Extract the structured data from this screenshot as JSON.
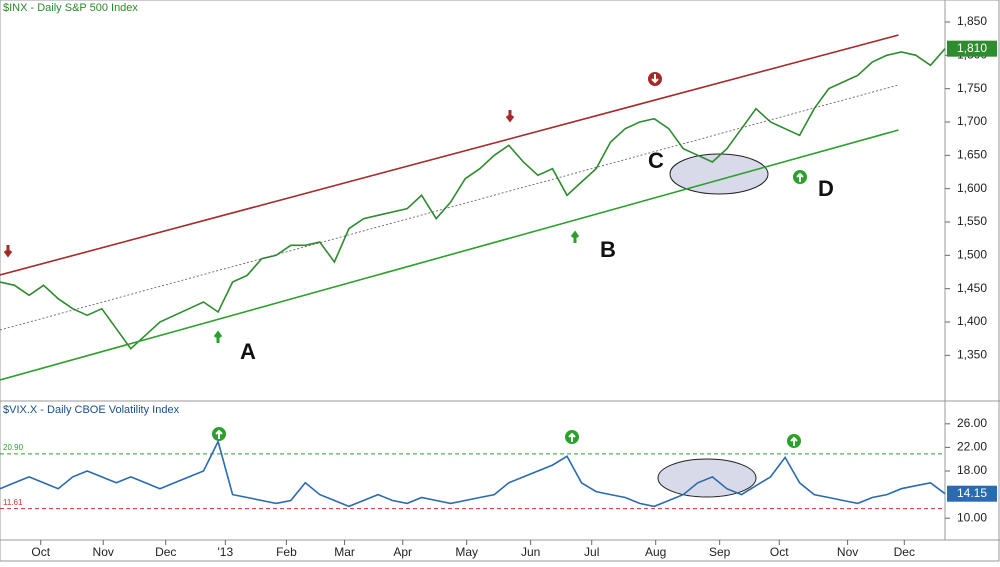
{
  "chart_data": [
    {
      "type": "line",
      "title": "$INX - Daily  S&P 500 Index",
      "x": [
        0,
        1,
        2,
        3,
        4,
        5,
        6,
        7,
        8,
        9,
        10,
        11,
        12,
        13,
        14,
        15,
        16,
        17,
        18,
        19,
        20,
        21,
        22,
        23,
        24,
        25,
        26,
        27,
        28,
        29,
        30,
        31,
        32,
        33,
        34,
        35,
        36,
        37,
        38,
        39,
        40,
        41,
        42,
        43,
        44,
        45,
        46,
        47,
        48,
        49,
        50,
        51,
        52,
        53,
        54,
        55,
        56,
        57,
        58,
        59,
        60,
        61,
        62,
        63,
        64,
        65
      ],
      "xlim": [
        0,
        65
      ],
      "ylim": [
        1283,
        1883
      ],
      "yticks": [
        {
          "value": 1350,
          "label": "1,350"
        },
        {
          "value": 1400,
          "label": "1,400"
        },
        {
          "value": 1450,
          "label": "1,450"
        },
        {
          "value": 1500,
          "label": "1,500"
        },
        {
          "value": 1550,
          "label": "1,550"
        },
        {
          "value": 1600,
          "label": "1,600"
        },
        {
          "value": 1650,
          "label": "1,650"
        },
        {
          "value": 1700,
          "label": "1,700"
        },
        {
          "value": 1750,
          "label": "1,750"
        },
        {
          "value": 1800,
          "label": "1,800"
        },
        {
          "value": 1850,
          "label": "1,850"
        }
      ],
      "series": [
        {
          "color": "#2e8b2e",
          "values": [
            1460,
            1455,
            1440,
            1455,
            1435,
            1420,
            1410,
            1420,
            1390,
            1360,
            1380,
            1400,
            1410,
            1420,
            1430,
            1415,
            1460,
            1470,
            1495,
            1500,
            1515,
            1515,
            1520,
            1490,
            1540,
            1555,
            1560,
            1565,
            1570,
            1590,
            1555,
            1580,
            1615,
            1630,
            1650,
            1665,
            1640,
            1620,
            1630,
            1590,
            1610,
            1630,
            1670,
            1690,
            1700,
            1705,
            1690,
            1660,
            1650,
            1640,
            1660,
            1690,
            1720,
            1700,
            1690,
            1680,
            1720,
            1750,
            1760,
            1770,
            1790,
            1800,
            1805,
            1800,
            1785,
            1810
          ],
          "value_labels": [
            null,
            null,
            null,
            null,
            null,
            null,
            null,
            null,
            null,
            null,
            null,
            null,
            null,
            null,
            null,
            null,
            null,
            null,
            null,
            null,
            null,
            null,
            null,
            null,
            null,
            null,
            null,
            null,
            null,
            null,
            null,
            null,
            null,
            null,
            null,
            null,
            null,
            null,
            null,
            null,
            null,
            null,
            null,
            null,
            null,
            null,
            null,
            null,
            null,
            null,
            null,
            null,
            null,
            null,
            null,
            null,
            null,
            null,
            null,
            null,
            null,
            null,
            null,
            null,
            null,
            "1,810"
          ]
        },
        {
          "color": "#a52a2a",
          "x": [
            0,
            61.8
          ],
          "values": [
            1470.5,
            1830.5
          ]
        },
        {
          "color": "#2ca02c",
          "x": [
            0,
            61.8
          ],
          "values": [
            1313,
            1688
          ]
        },
        {
          "color": "#555555",
          "dash": true,
          "x": [
            0,
            61.8
          ],
          "values": [
            1388,
            1755.5
          ]
        }
      ],
      "annotations": [
        "A",
        "B",
        "C",
        "D"
      ]
    },
    {
      "type": "line",
      "title": "$VIX.X - Daily  CBOE Volatility Index",
      "x": [
        0,
        1,
        2,
        3,
        4,
        5,
        6,
        7,
        8,
        9,
        10,
        11,
        12,
        13,
        14,
        15,
        16,
        17,
        18,
        19,
        20,
        21,
        22,
        23,
        24,
        25,
        26,
        27,
        28,
        29,
        30,
        31,
        32,
        33,
        34,
        35,
        36,
        37,
        38,
        39,
        40,
        41,
        42,
        43,
        44,
        45,
        46,
        47,
        48,
        49,
        50,
        51,
        52,
        53,
        54,
        55,
        56,
        57,
        58,
        59,
        60,
        61,
        62,
        63,
        64,
        65
      ],
      "xlim": [
        0,
        65
      ],
      "xticks": [
        {
          "value": 2.8,
          "label": "Oct"
        },
        {
          "value": 7.1,
          "label": "Nov"
        },
        {
          "value": 11.4,
          "label": "Dec"
        },
        {
          "value": 15.5,
          "label": "'13"
        },
        {
          "value": 19.7,
          "label": "Feb"
        },
        {
          "value": 23.7,
          "label": "Mar"
        },
        {
          "value": 27.7,
          "label": "Apr"
        },
        {
          "value": 32.1,
          "label": "May"
        },
        {
          "value": 36.5,
          "label": "Jun"
        },
        {
          "value": 40.7,
          "label": "Jul"
        },
        {
          "value": 45.1,
          "label": "Aug"
        },
        {
          "value": 49.5,
          "label": "Sep"
        },
        {
          "value": 53.6,
          "label": "Oct"
        },
        {
          "value": 58.3,
          "label": "Nov"
        },
        {
          "value": 62.2,
          "label": "Dec"
        }
      ],
      "ylim": [
        6.3,
        29.7
      ],
      "yticks": [
        {
          "value": 10,
          "label": "10.00"
        },
        {
          "value": 18,
          "label": "18.00"
        },
        {
          "value": 22,
          "label": "22.00"
        },
        {
          "value": 26,
          "label": "26.00"
        }
      ],
      "series": [
        {
          "color": "#2a6ab0",
          "values": [
            15,
            16,
            17,
            16,
            15,
            17,
            18,
            17,
            16,
            17,
            16,
            15,
            16,
            17,
            18,
            23,
            14,
            13.5,
            13,
            12.5,
            13,
            16,
            14,
            13,
            12,
            13,
            14,
            13,
            12.5,
            13.5,
            13,
            12.5,
            13,
            13.5,
            14,
            16,
            17,
            18,
            19,
            20.5,
            16,
            14.5,
            14,
            13.5,
            12.5,
            12,
            13,
            14,
            16,
            17,
            15,
            14,
            15.5,
            17,
            20.3,
            16,
            14,
            13.5,
            13,
            12.5,
            13.5,
            14,
            15,
            15.5,
            16,
            14.15
          ]
        }
      ],
      "ref_lines": [
        {
          "value": 20.9,
          "label": "20.90",
          "color": "#2ca02c"
        },
        {
          "value": 11.61,
          "label": "11.61",
          "color": "#d03030"
        }
      ]
    }
  ]
}
